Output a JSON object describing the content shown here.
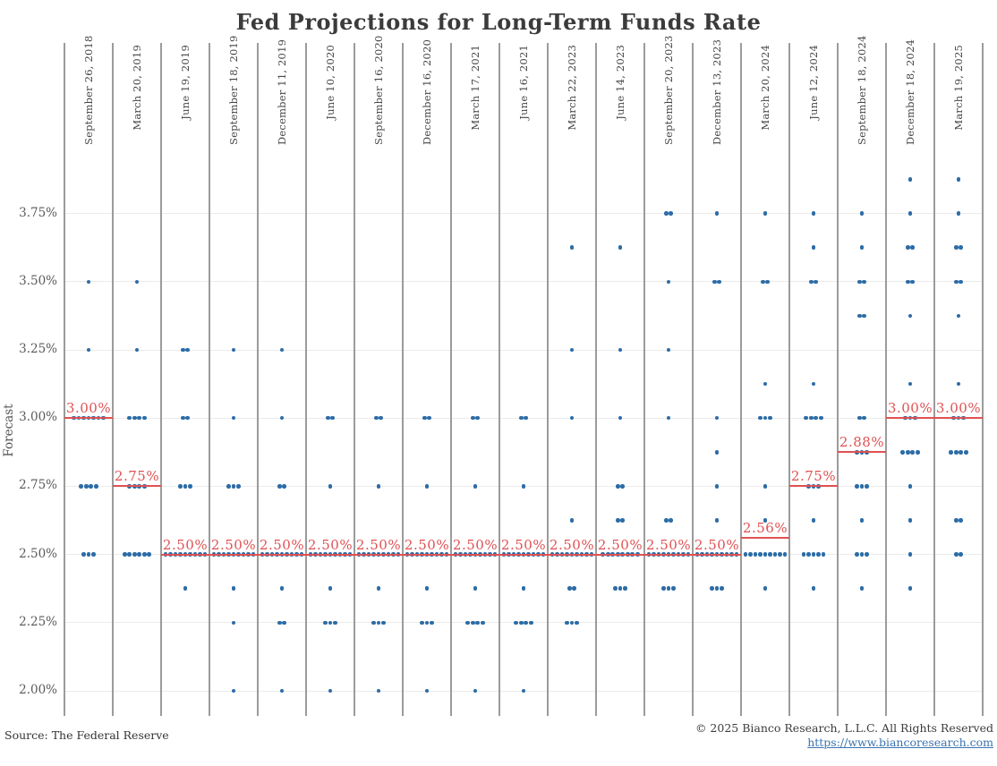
{
  "title": "Fed Projections for Long-Term Funds Rate",
  "footer": {
    "source": "Source: The Federal Reserve",
    "copyright": "© 2025 Bianco Research, L.L.C. All Rights Reserved",
    "link": "https://www.biancoresearch.com"
  },
  "colors": {
    "dot_blue": "#2d6ca6",
    "median_red": "#df5152",
    "divider_gray": "#9b9b9b",
    "grid_gray": "#ebebeb",
    "title_gray": "#3b3b3b"
  },
  "chart_data": {
    "type": "scatter",
    "title": "Fed Projections for Long-Term Funds Rate",
    "xlabel": "",
    "ylabel": "Forecast",
    "ylim": [
      1.9,
      4.0
    ],
    "grid": true,
    "y_ticks": [
      {
        "value": 2.0,
        "label": "2.00%"
      },
      {
        "value": 2.25,
        "label": "2.25%"
      },
      {
        "value": 2.5,
        "label": "2.50%"
      },
      {
        "value": 2.75,
        "label": "2.75%"
      },
      {
        "value": 3.0,
        "label": "3.00%"
      },
      {
        "value": 3.25,
        "label": "3.25%"
      },
      {
        "value": 3.5,
        "label": "3.50%"
      },
      {
        "value": 3.75,
        "label": "3.75%"
      }
    ],
    "meetings": [
      {
        "date": "September 26, 2018",
        "median": 3.0,
        "median_label": "3.00%",
        "dots": [
          [
            3.5,
            1
          ],
          [
            3.25,
            1
          ],
          [
            3.0,
            7
          ],
          [
            2.75,
            4
          ],
          [
            2.5,
            3
          ]
        ]
      },
      {
        "date": "March 20, 2019",
        "median": 2.75,
        "median_label": "2.75%",
        "dots": [
          [
            3.5,
            1
          ],
          [
            3.25,
            1
          ],
          [
            3.0,
            4
          ],
          [
            2.75,
            4
          ],
          [
            2.5,
            6
          ]
        ]
      },
      {
        "date": "June 19, 2019",
        "median": 2.5,
        "median_label": "2.50%",
        "dots": [
          [
            3.25,
            2
          ],
          [
            3.0,
            2
          ],
          [
            2.75,
            3
          ],
          [
            2.5,
            9
          ],
          [
            2.375,
            1
          ]
        ]
      },
      {
        "date": "September 18, 2019",
        "median": 2.5,
        "median_label": "2.50%",
        "dots": [
          [
            3.25,
            1
          ],
          [
            3.0,
            1
          ],
          [
            2.75,
            3
          ],
          [
            2.5,
            9
          ],
          [
            2.375,
            1
          ],
          [
            2.25,
            1
          ],
          [
            2.0,
            1
          ]
        ]
      },
      {
        "date": "December 11, 2019",
        "median": 2.5,
        "median_label": "2.50%",
        "dots": [
          [
            3.25,
            1
          ],
          [
            3.0,
            1
          ],
          [
            2.75,
            2
          ],
          [
            2.5,
            9
          ],
          [
            2.375,
            1
          ],
          [
            2.25,
            2
          ],
          [
            2.0,
            1
          ]
        ]
      },
      {
        "date": "June 10, 2020",
        "median": 2.5,
        "median_label": "2.50%",
        "dots": [
          [
            3.0,
            2
          ],
          [
            2.75,
            1
          ],
          [
            2.5,
            9
          ],
          [
            2.375,
            1
          ],
          [
            2.25,
            3
          ],
          [
            2.0,
            1
          ]
        ]
      },
      {
        "date": "September 16, 2020",
        "median": 2.5,
        "median_label": "2.50%",
        "dots": [
          [
            3.0,
            2
          ],
          [
            2.75,
            1
          ],
          [
            2.5,
            9
          ],
          [
            2.375,
            1
          ],
          [
            2.25,
            3
          ],
          [
            2.0,
            1
          ]
        ]
      },
      {
        "date": "December 16, 2020",
        "median": 2.5,
        "median_label": "2.50%",
        "dots": [
          [
            3.0,
            2
          ],
          [
            2.75,
            1
          ],
          [
            2.5,
            9
          ],
          [
            2.375,
            1
          ],
          [
            2.25,
            3
          ],
          [
            2.0,
            1
          ]
        ]
      },
      {
        "date": "March 17, 2021",
        "median": 2.5,
        "median_label": "2.50%",
        "dots": [
          [
            3.0,
            2
          ],
          [
            2.75,
            1
          ],
          [
            2.5,
            9
          ],
          [
            2.375,
            1
          ],
          [
            2.25,
            4
          ],
          [
            2.0,
            1
          ]
        ]
      },
      {
        "date": "June 16, 2021",
        "median": 2.5,
        "median_label": "2.50%",
        "dots": [
          [
            3.0,
            2
          ],
          [
            2.75,
            1
          ],
          [
            2.5,
            9
          ],
          [
            2.375,
            1
          ],
          [
            2.25,
            4
          ],
          [
            2.0,
            1
          ]
        ]
      },
      {
        "date": "March 22, 2023",
        "median": 2.5,
        "median_label": "2.50%",
        "dots": [
          [
            3.625,
            1
          ],
          [
            3.25,
            1
          ],
          [
            3.0,
            1
          ],
          [
            2.625,
            1
          ],
          [
            2.5,
            9
          ],
          [
            2.375,
            2
          ],
          [
            2.25,
            3
          ]
        ]
      },
      {
        "date": "June 14, 2023",
        "median": 2.5,
        "median_label": "2.50%",
        "dots": [
          [
            3.625,
            1
          ],
          [
            3.25,
            1
          ],
          [
            3.0,
            1
          ],
          [
            2.75,
            2
          ],
          [
            2.625,
            2
          ],
          [
            2.5,
            8
          ],
          [
            2.375,
            3
          ]
        ]
      },
      {
        "date": "September 20, 2023",
        "median": 2.5,
        "median_label": "2.50%",
        "dots": [
          [
            3.75,
            2
          ],
          [
            3.5,
            1
          ],
          [
            3.25,
            1
          ],
          [
            3.0,
            1
          ],
          [
            2.625,
            2
          ],
          [
            2.5,
            9
          ],
          [
            2.375,
            3
          ]
        ]
      },
      {
        "date": "December 13, 2023",
        "median": 2.5,
        "median_label": "2.50%",
        "dots": [
          [
            3.75,
            1
          ],
          [
            3.5,
            2
          ],
          [
            3.0,
            1
          ],
          [
            2.875,
            1
          ],
          [
            2.75,
            1
          ],
          [
            2.625,
            1
          ],
          [
            2.5,
            9
          ],
          [
            2.375,
            3
          ]
        ]
      },
      {
        "date": "March 20, 2024",
        "median": 2.5625,
        "median_label": "2.56%",
        "dots": [
          [
            3.75,
            1
          ],
          [
            3.5,
            2
          ],
          [
            3.125,
            1
          ],
          [
            3.0,
            3
          ],
          [
            2.75,
            1
          ],
          [
            2.625,
            1
          ],
          [
            2.5,
            9
          ],
          [
            2.375,
            1
          ]
        ]
      },
      {
        "date": "June 12, 2024",
        "median": 2.75,
        "median_label": "2.75%",
        "dots": [
          [
            3.75,
            1
          ],
          [
            3.625,
            1
          ],
          [
            3.5,
            2
          ],
          [
            3.125,
            1
          ],
          [
            3.0,
            4
          ],
          [
            2.75,
            3
          ],
          [
            2.625,
            1
          ],
          [
            2.5,
            5
          ],
          [
            2.375,
            1
          ]
        ]
      },
      {
        "date": "September 18, 2024",
        "median": 2.875,
        "median_label": "2.88%",
        "dots": [
          [
            3.75,
            1
          ],
          [
            3.625,
            1
          ],
          [
            3.5,
            2
          ],
          [
            3.375,
            2
          ],
          [
            3.0,
            2
          ],
          [
            2.875,
            3
          ],
          [
            2.75,
            3
          ],
          [
            2.625,
            1
          ],
          [
            2.5,
            3
          ],
          [
            2.375,
            1
          ]
        ]
      },
      {
        "date": "December 18, 2024",
        "median": 3.0,
        "median_label": "3.00%",
        "dots": [
          [
            3.875,
            1
          ],
          [
            3.75,
            1
          ],
          [
            3.625,
            2
          ],
          [
            3.5,
            2
          ],
          [
            3.375,
            1
          ],
          [
            3.125,
            1
          ],
          [
            3.0,
            3
          ],
          [
            2.875,
            4
          ],
          [
            2.75,
            1
          ],
          [
            2.625,
            1
          ],
          [
            2.5,
            1
          ],
          [
            2.375,
            1
          ]
        ]
      },
      {
        "date": "March 19, 2025",
        "median": 3.0,
        "median_label": "3.00%",
        "dots": [
          [
            3.875,
            1
          ],
          [
            3.75,
            1
          ],
          [
            3.625,
            2
          ],
          [
            3.5,
            2
          ],
          [
            3.375,
            1
          ],
          [
            3.125,
            1
          ],
          [
            3.0,
            3
          ],
          [
            2.875,
            4
          ],
          [
            2.625,
            2
          ],
          [
            2.5,
            2
          ]
        ]
      }
    ]
  }
}
